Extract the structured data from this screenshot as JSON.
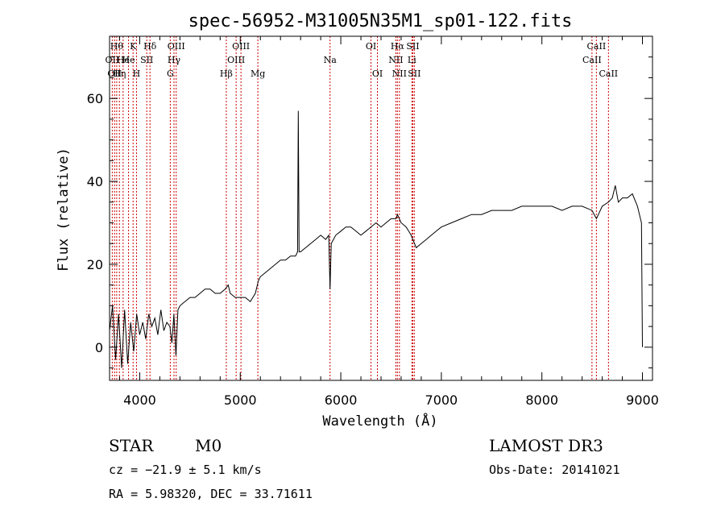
{
  "chart_data": {
    "type": "line",
    "title": "spec-56952-M31005N35M1_sp01-122.fits",
    "xlabel": "Wavelength (Å)",
    "ylabel": "Flux (relative)",
    "xlim": [
      3700,
      9100
    ],
    "ylim": [
      -8,
      75
    ],
    "x_ticks": [
      4000,
      5000,
      6000,
      7000,
      8000,
      9000
    ],
    "y_ticks": [
      0,
      20,
      40,
      60
    ],
    "grid": false,
    "line_color": "#000000",
    "marker_color": "#cc0000",
    "series": [
      {
        "x": [
          3700,
          3730,
          3760,
          3790,
          3820,
          3850,
          3880,
          3910,
          3940,
          3970,
          4000,
          4030,
          4060,
          4090,
          4120,
          4150,
          4180,
          4210,
          4240,
          4270,
          4300,
          4320,
          4340,
          4360,
          4380,
          4400,
          4450,
          4500,
          4550,
          4600,
          4650,
          4700,
          4750,
          4800,
          4850,
          4880,
          4900,
          4950,
          5000,
          5050,
          5100,
          5150,
          5180,
          5200,
          5250,
          5300,
          5350,
          5400,
          5450,
          5500,
          5550,
          5570,
          5577,
          5585,
          5600,
          5650,
          5700,
          5750,
          5800,
          5850,
          5880,
          5893,
          5905,
          5950,
          6000,
          6050,
          6100,
          6150,
          6200,
          6250,
          6300,
          6350,
          6400,
          6450,
          6500,
          6550,
          6563,
          6600,
          6650,
          6700,
          6750,
          6800,
          6850,
          6900,
          6950,
          7000,
          7100,
          7200,
          7300,
          7400,
          7500,
          7600,
          7700,
          7800,
          7900,
          8000,
          8100,
          8200,
          8300,
          8400,
          8498,
          8542,
          8600,
          8662,
          8700,
          8730,
          8760,
          8800,
          8850,
          8900,
          8950,
          8990,
          9000
        ],
        "y": [
          4,
          10,
          -3,
          8,
          -5,
          9,
          -4,
          6,
          -1,
          8,
          3,
          6,
          2,
          8,
          5,
          7,
          3,
          9,
          4,
          6,
          5,
          1,
          8,
          -2,
          9,
          10,
          11,
          12,
          12,
          13,
          14,
          14,
          13,
          13,
          14,
          15,
          13,
          12,
          12,
          12,
          11,
          13,
          16,
          17,
          18,
          19,
          20,
          21,
          21,
          22,
          22,
          23,
          57,
          23,
          23,
          24,
          25,
          26,
          27,
          26,
          27,
          14,
          25,
          27,
          28,
          29,
          29,
          28,
          27,
          28,
          29,
          30,
          29,
          30,
          31,
          31,
          32,
          30,
          29,
          27,
          24,
          25,
          26,
          27,
          28,
          29,
          30,
          31,
          32,
          32,
          33,
          33,
          33,
          34,
          34,
          34,
          34,
          33,
          34,
          34,
          33,
          31,
          34,
          35,
          36,
          39,
          35,
          36,
          36,
          37,
          34,
          30,
          0
        ]
      }
    ],
    "lines": [
      {
        "wl": 3727,
        "label": "OII",
        "row": 2
      },
      {
        "wl": 3750,
        "label": "OII",
        "row": 3
      },
      {
        "wl": 3771,
        "label": "Hθ",
        "row": 1
      },
      {
        "wl": 3798,
        "label": "Hη",
        "row": 3
      },
      {
        "wl": 3835,
        "label": "He",
        "row": 2
      },
      {
        "wl": 3889,
        "label": "He",
        "row": 2
      },
      {
        "wl": 3934,
        "label": "K",
        "row": 1
      },
      {
        "wl": 3968,
        "label": "H",
        "row": 3
      },
      {
        "wl": 4070,
        "label": "SII",
        "row": 2
      },
      {
        "wl": 4102,
        "label": "Hδ",
        "row": 1
      },
      {
        "wl": 4304,
        "label": "G",
        "row": 3
      },
      {
        "wl": 4341,
        "label": "Hγ",
        "row": 2
      },
      {
        "wl": 4363,
        "label": "OIII",
        "row": 1
      },
      {
        "wl": 4861,
        "label": "Hβ",
        "row": 3
      },
      {
        "wl": 4959,
        "label": "OIII",
        "row": 2
      },
      {
        "wl": 5007,
        "label": "OIII",
        "row": 1
      },
      {
        "wl": 5175,
        "label": "Mg",
        "row": 3
      },
      {
        "wl": 5893,
        "label": "Na",
        "row": 2
      },
      {
        "wl": 6300,
        "label": "OI",
        "row": 1
      },
      {
        "wl": 6364,
        "label": "OI",
        "row": 3
      },
      {
        "wl": 6548,
        "label": "NII",
        "row": 2
      },
      {
        "wl": 6563,
        "label": "Hα",
        "row": 1
      },
      {
        "wl": 6583,
        "label": "NII",
        "row": 3
      },
      {
        "wl": 6707,
        "label": "Li",
        "row": 2
      },
      {
        "wl": 6716,
        "label": "SII",
        "row": 1
      },
      {
        "wl": 6731,
        "label": "SII",
        "row": 3
      },
      {
        "wl": 8498,
        "label": "CaII",
        "row": 2
      },
      {
        "wl": 8542,
        "label": "CaII",
        "row": 1
      },
      {
        "wl": 8662,
        "label": "CaII",
        "row": 3
      }
    ]
  },
  "info": {
    "object_class": "STAR",
    "subclass": "M0",
    "survey": "LAMOST DR3",
    "redshift": "cz = −21.9 ± 5.1 km/s",
    "obs_date": "Obs-Date: 20141021",
    "coords": "RA =   5.98320, DEC =  33.71611"
  }
}
